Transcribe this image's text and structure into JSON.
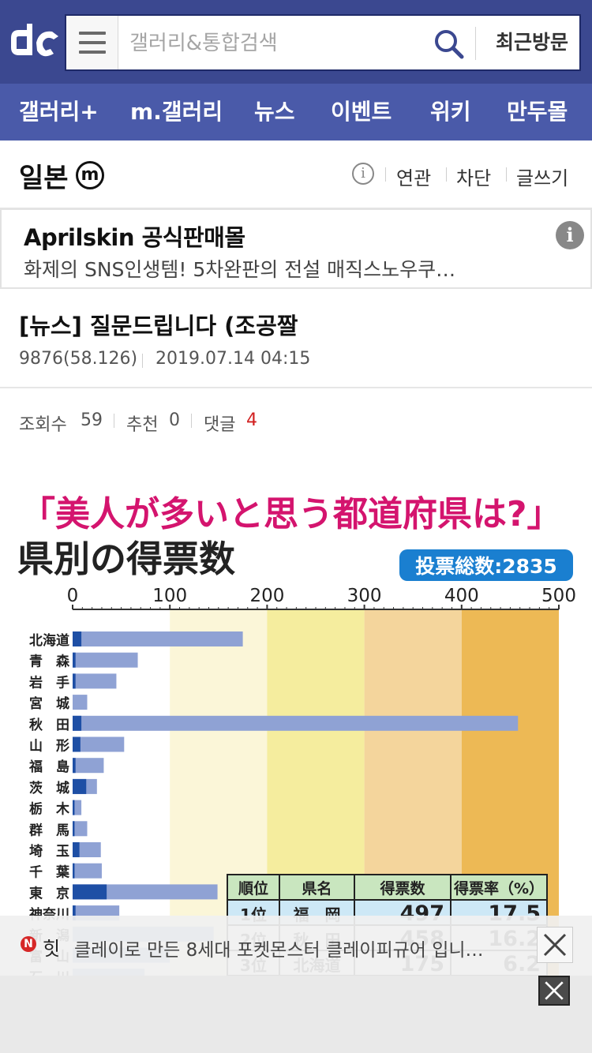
{
  "header": {
    "search_placeholder": "갤러리&통합검색",
    "recent_label": "최근방문"
  },
  "nav": {
    "items": [
      "갤러리+",
      "m.갤러리",
      "뉴스",
      "이벤트",
      "위키",
      "만두몰"
    ]
  },
  "gallery": {
    "title": "일본",
    "badge": "ⓜ",
    "info": "i",
    "links": [
      "연관",
      "차단",
      "글쓰기"
    ]
  },
  "ad": {
    "title": "Aprilskin 공식판매몰",
    "desc": "화제의 SNS인생템! 5차완판의 전설 매직스노우쿠…",
    "info": "i"
  },
  "post": {
    "title": "[뉴스] 질문드립니다 (조공짤",
    "author": "9876(58.126)",
    "date": "2019.07.14 04:15",
    "views_label": "조회수",
    "views": "59",
    "recommend_label": "추천",
    "recommend": "0",
    "comments_label": "댓글",
    "comments": "4"
  },
  "image": {
    "headline": "「美人が多いと思う都道府県は?」",
    "subtitle": "県別の得票数",
    "total_badge": "投票総数:2835",
    "table_headers": [
      "順位",
      "県名",
      "得票数",
      "得票率（%）"
    ],
    "table_rows": [
      [
        "1位",
        "福　岡",
        "497",
        "17.5"
      ],
      [
        "2位",
        "秋　田",
        "458",
        "16.2"
      ],
      [
        "3位",
        "北海道",
        "175",
        "6.2"
      ]
    ],
    "colors": {
      "headline": "#d4146e",
      "badge": "#1a7fd0",
      "bar_light": "#8fa2d4",
      "bar_dark": "#1e4fa5",
      "zone1": "#fbf6d8",
      "zone2": "#f5ed9e",
      "zone3": "#f4d59c",
      "zone4": "#edb955",
      "table_header": "#c9e6bf",
      "table_row1": "#cde8f6"
    }
  },
  "chart_data": {
    "type": "bar",
    "orientation": "horizontal",
    "title": "県別の得票数",
    "xlim": [
      0,
      500
    ],
    "x_ticks": [
      "0",
      "100",
      "200",
      "300",
      "400",
      "500"
    ],
    "categories": [
      "北海道",
      "青　森",
      "岩　手",
      "宮　城",
      "秋　田",
      "山　形",
      "福　島",
      "茨　城",
      "栃　木",
      "群　馬",
      "埼　玉",
      "千　葉",
      "東　京",
      "神奈川",
      "新　潟",
      "富　山",
      "石　川"
    ],
    "values": [
      175,
      67,
      45,
      15,
      458,
      53,
      32,
      25,
      9,
      15,
      29,
      30,
      149,
      48,
      145,
      100,
      74
    ],
    "dark_portion": [
      9,
      3,
      3,
      0,
      9,
      8,
      3,
      14,
      2,
      2,
      7,
      2,
      35,
      3,
      0,
      0,
      0
    ]
  },
  "ticker": {
    "badge": "N",
    "label": "힛",
    "text": "클레이로 만든 8세대 포켓몬스터 클레이피규어 입니…"
  }
}
